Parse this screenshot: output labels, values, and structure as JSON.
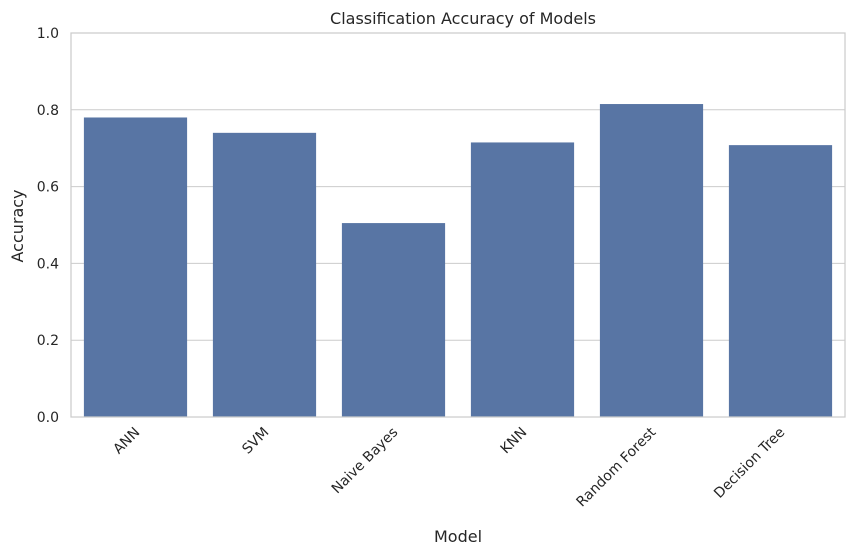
{
  "chart_data": {
    "type": "bar",
    "title": "Classification Accuracy of Models",
    "xlabel": "Model",
    "ylabel": "Accuracy",
    "categories": [
      "ANN",
      "SVM",
      "Naive Bayes",
      "KNN",
      "Random Forest",
      "Decision Tree"
    ],
    "values": [
      0.78,
      0.74,
      0.505,
      0.715,
      0.815,
      0.708
    ],
    "ylim": [
      0,
      1.0
    ],
    "yticks": [
      "0.0",
      "0.2",
      "0.4",
      "0.6",
      "0.8",
      "1.0"
    ],
    "grid": "horizontal",
    "legend": "none",
    "colors": {
      "bar": "#5875a4",
      "grid": "#cccccc",
      "frame": "#cccccc",
      "text": "#262626",
      "background": "#ffffff"
    }
  }
}
